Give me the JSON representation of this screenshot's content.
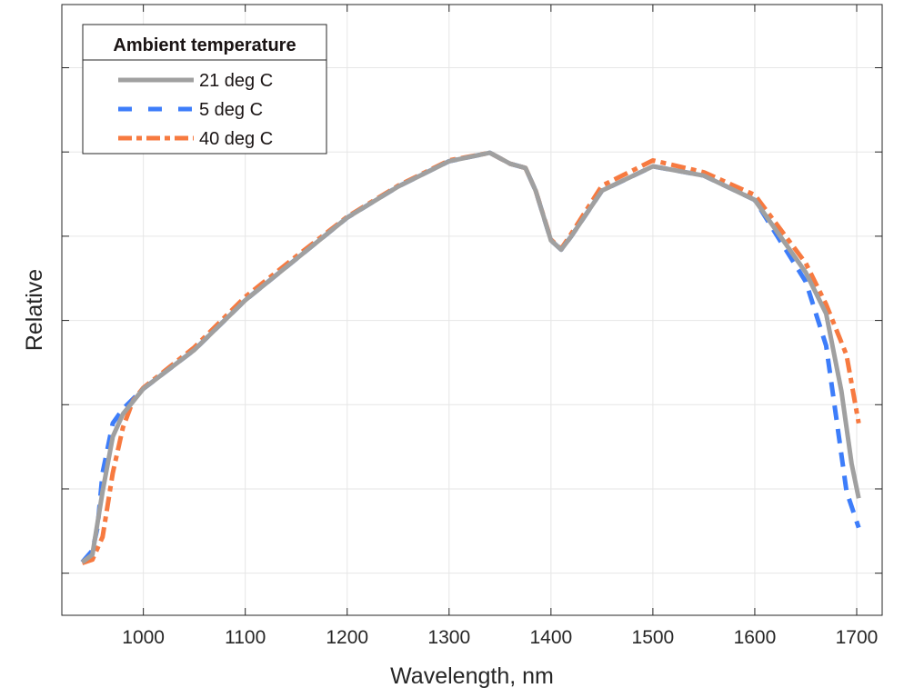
{
  "chart_data": {
    "type": "line",
    "title": "",
    "xlabel": "Wavelength, nm",
    "ylabel": "Relative",
    "xlim": [
      920,
      1725
    ],
    "ylim": [
      -0.5,
      6.75
    ],
    "xticks": [
      1000,
      1100,
      1200,
      1300,
      1400,
      1500,
      1600,
      1700
    ],
    "xtick_labels": [
      "1000",
      "1100",
      "1200",
      "1300",
      "1400",
      "1500",
      "1600",
      "1700"
    ],
    "yticks": [
      0,
      1,
      2,
      3,
      4,
      5,
      6
    ],
    "grid": true,
    "legend": {
      "title": "Ambient temperature",
      "placement": "top-left"
    },
    "series": [
      {
        "name": "21 deg C",
        "color": "#a0a0a0",
        "style": "solid",
        "x": [
          940,
          950,
          960,
          970,
          980,
          1000,
          1050,
          1100,
          1150,
          1200,
          1250,
          1300,
          1340,
          1360,
          1375,
          1385,
          1400,
          1410,
          1420,
          1450,
          1500,
          1550,
          1600,
          1650,
          1670,
          1685,
          1695,
          1702
        ],
        "y": [
          0.13,
          0.22,
          0.97,
          1.62,
          1.89,
          2.19,
          2.65,
          3.24,
          3.73,
          4.22,
          4.59,
          4.89,
          4.99,
          4.86,
          4.81,
          4.54,
          3.95,
          3.84,
          4.0,
          4.54,
          4.83,
          4.72,
          4.43,
          3.57,
          3.08,
          2.16,
          1.3,
          0.89
        ]
      },
      {
        "name": "5 deg C",
        "color": "#3d7dfa",
        "style": "dashed",
        "x": [
          940,
          950,
          955,
          960,
          970,
          980,
          1000,
          1050,
          1100,
          1150,
          1200,
          1250,
          1300,
          1340,
          1360,
          1375,
          1385,
          1400,
          1410,
          1420,
          1450,
          1500,
          1550,
          1600,
          1650,
          1670,
          1680,
          1690,
          1702
        ],
        "y": [
          0.13,
          0.27,
          0.54,
          1.19,
          1.78,
          1.95,
          2.19,
          2.65,
          3.24,
          3.73,
          4.22,
          4.59,
          4.89,
          4.99,
          4.86,
          4.81,
          4.54,
          3.95,
          3.84,
          4.0,
          4.54,
          4.83,
          4.72,
          4.43,
          3.46,
          2.7,
          1.84,
          0.97,
          0.54
        ]
      },
      {
        "name": "40 deg C",
        "color": "#f77a40",
        "style": "dashdot",
        "x": [
          940,
          950,
          960,
          970,
          980,
          990,
          1000,
          1050,
          1100,
          1150,
          1200,
          1250,
          1300,
          1340,
          1360,
          1375,
          1385,
          1400,
          1410,
          1420,
          1450,
          1500,
          1550,
          1600,
          1650,
          1670,
          1690,
          1702
        ],
        "y": [
          0.12,
          0.16,
          0.43,
          1.19,
          1.73,
          2.05,
          2.2,
          2.68,
          3.28,
          3.76,
          4.23,
          4.6,
          4.9,
          4.99,
          4.86,
          4.81,
          4.54,
          3.96,
          3.85,
          4.03,
          4.6,
          4.9,
          4.76,
          4.49,
          3.68,
          3.19,
          2.59,
          1.78
        ]
      }
    ]
  }
}
